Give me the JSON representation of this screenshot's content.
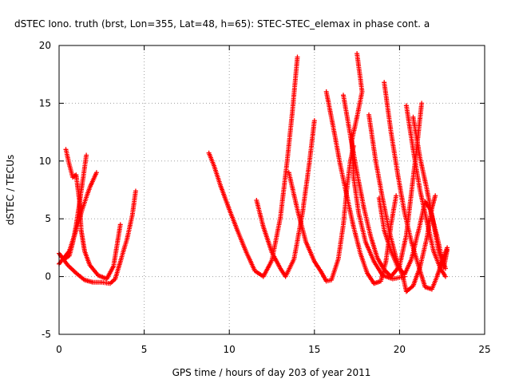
{
  "chart_data": {
    "type": "scatter",
    "title": "dSTEC Iono. truth (brst, Lon=355, Lat=48, h=65): STEC-STEC_elemax in phase cont. a",
    "xlabel": "GPS time / hours of day 203 of year 2011",
    "ylabel": "dSTEC  / TECUs",
    "xlim": [
      0,
      25
    ],
    "ylim": [
      -5,
      20
    ],
    "xticks": [
      "0",
      "5",
      "10",
      "15",
      "20",
      "25"
    ],
    "yticks": [
      "-5",
      "0",
      "5",
      "10",
      "15",
      "20"
    ],
    "grid": true,
    "marker_color": "#ff0000",
    "series": [
      {
        "points": [
          [
            0.0,
            2.0
          ],
          [
            0.5,
            1.0
          ],
          [
            1.0,
            0.3
          ],
          [
            1.5,
            -0.3
          ],
          [
            2.0,
            -0.5
          ],
          [
            2.5,
            -0.5
          ],
          [
            3.0,
            -0.6
          ],
          [
            3.3,
            -0.2
          ],
          [
            3.6,
            1.3
          ],
          [
            4.0,
            3.3
          ],
          [
            4.3,
            5.3
          ],
          [
            4.5,
            7.4
          ]
        ]
      },
      {
        "points": [
          [
            0.1,
            1.8
          ],
          [
            0.3,
            1.5
          ],
          [
            0.6,
            1.8
          ],
          [
            0.8,
            2.9
          ],
          [
            1.0,
            4.4
          ],
          [
            1.2,
            6.4
          ],
          [
            1.4,
            8.4
          ],
          [
            1.6,
            10.5
          ]
        ]
      },
      {
        "points": [
          [
            0.0,
            1.1
          ],
          [
            0.6,
            2.2
          ],
          [
            1.0,
            4.0
          ],
          [
            1.4,
            6.0
          ],
          [
            1.8,
            7.7
          ],
          [
            2.2,
            9.0
          ]
        ]
      },
      {
        "points": [
          [
            0.4,
            11.0
          ],
          [
            0.6,
            9.7
          ],
          [
            0.8,
            8.6
          ],
          [
            1.0,
            8.8
          ],
          [
            1.2,
            6.5
          ],
          [
            1.3,
            4.0
          ],
          [
            1.5,
            2.2
          ],
          [
            1.8,
            1.0
          ],
          [
            2.3,
            0.1
          ],
          [
            2.8,
            -0.2
          ],
          [
            3.2,
            0.9
          ],
          [
            3.6,
            4.5
          ]
        ]
      },
      {
        "points": [
          [
            8.8,
            10.7
          ],
          [
            9.1,
            9.6
          ],
          [
            9.5,
            7.8
          ],
          [
            10.0,
            5.8
          ],
          [
            10.5,
            3.9
          ],
          [
            11.0,
            2.1
          ],
          [
            11.5,
            0.5
          ],
          [
            12.0,
            0.0
          ],
          [
            12.5,
            1.4
          ],
          [
            13.0,
            5.1
          ],
          [
            13.4,
            10.0
          ],
          [
            13.7,
            14.2
          ],
          [
            14.0,
            19.0
          ]
        ]
      },
      {
        "points": [
          [
            11.6,
            6.6
          ],
          [
            12.0,
            4.3
          ],
          [
            12.5,
            2.1
          ],
          [
            13.0,
            0.7
          ],
          [
            13.3,
            0.0
          ],
          [
            13.8,
            1.5
          ],
          [
            14.3,
            5.5
          ],
          [
            14.7,
            9.8
          ],
          [
            15.0,
            13.5
          ]
        ]
      },
      {
        "points": [
          [
            13.5,
            9.0
          ],
          [
            14.0,
            5.8
          ],
          [
            14.5,
            3.0
          ],
          [
            15.0,
            1.3
          ],
          [
            15.4,
            0.4
          ],
          [
            15.7,
            -0.4
          ],
          [
            16.0,
            -0.3
          ],
          [
            16.4,
            1.5
          ],
          [
            16.7,
            4.5
          ],
          [
            16.9,
            7.5
          ],
          [
            17.1,
            9.9
          ],
          [
            17.3,
            11.3
          ]
        ]
      },
      {
        "points": [
          [
            15.7,
            16.0
          ],
          [
            16.1,
            13.0
          ],
          [
            16.5,
            9.8
          ],
          [
            16.9,
            7.0
          ],
          [
            17.3,
            4.3
          ],
          [
            17.7,
            2.0
          ],
          [
            18.1,
            0.3
          ],
          [
            18.5,
            -0.6
          ],
          [
            18.9,
            -0.4
          ],
          [
            19.2,
            1.3
          ],
          [
            19.5,
            4.5
          ],
          [
            19.8,
            7.0
          ]
        ]
      },
      {
        "points": [
          [
            16.7,
            15.7
          ],
          [
            17.1,
            12.3
          ],
          [
            17.5,
            9.0
          ],
          [
            17.9,
            6.0
          ],
          [
            18.3,
            3.5
          ],
          [
            18.7,
            1.6
          ],
          [
            19.1,
            0.6
          ],
          [
            19.5,
            0.0
          ],
          [
            20.0,
            0.9
          ],
          [
            20.4,
            3.6
          ],
          [
            20.7,
            7.3
          ],
          [
            21.0,
            11.0
          ],
          [
            21.3,
            15.0
          ]
        ]
      },
      {
        "points": [
          [
            17.5,
            19.3
          ],
          [
            17.8,
            16.0
          ],
          [
            17.5,
            13.8
          ],
          [
            17.2,
            11.8
          ],
          [
            17.3,
            8.6
          ],
          [
            17.6,
            5.5
          ],
          [
            18.0,
            3.0
          ],
          [
            18.5,
            1.3
          ],
          [
            19.0,
            0.1
          ],
          [
            19.6,
            -0.2
          ],
          [
            20.3,
            0.0
          ]
        ]
      },
      {
        "points": [
          [
            18.2,
            14.0
          ],
          [
            18.6,
            10.0
          ],
          [
            19.0,
            6.8
          ],
          [
            19.4,
            3.9
          ],
          [
            19.8,
            1.6
          ],
          [
            20.2,
            0.0
          ],
          [
            20.4,
            -1.3
          ],
          [
            20.8,
            -0.8
          ],
          [
            21.2,
            0.8
          ],
          [
            21.6,
            3.3
          ],
          [
            21.9,
            5.9
          ],
          [
            22.1,
            7.0
          ]
        ]
      },
      {
        "points": [
          [
            19.1,
            16.8
          ],
          [
            19.5,
            12.5
          ],
          [
            19.9,
            8.8
          ],
          [
            20.3,
            5.5
          ],
          [
            20.7,
            3.0
          ],
          [
            21.1,
            1.0
          ],
          [
            21.5,
            -0.9
          ],
          [
            21.9,
            -1.1
          ],
          [
            22.2,
            0.0
          ],
          [
            22.5,
            1.3
          ],
          [
            22.8,
            2.5
          ]
        ]
      },
      {
        "points": [
          [
            20.4,
            14.8
          ],
          [
            20.8,
            11.0
          ],
          [
            21.2,
            7.5
          ],
          [
            21.6,
            4.8
          ],
          [
            22.0,
            2.2
          ],
          [
            22.4,
            0.7
          ],
          [
            22.7,
            0.0
          ]
        ]
      },
      {
        "points": [
          [
            20.8,
            13.8
          ],
          [
            21.2,
            10.3
          ],
          [
            21.6,
            7.6
          ],
          [
            22.0,
            4.6
          ],
          [
            22.3,
            2.2
          ],
          [
            22.6,
            0.8
          ],
          [
            22.8,
            2.3
          ]
        ]
      },
      {
        "points": [
          [
            18.8,
            6.8
          ],
          [
            19.1,
            4.0
          ],
          [
            19.5,
            2.2
          ],
          [
            19.9,
            0.8
          ],
          [
            20.3,
            0.2
          ],
          [
            20.7,
            1.5
          ],
          [
            21.2,
            4.5
          ],
          [
            21.5,
            6.5
          ],
          [
            21.8,
            5.8
          ],
          [
            22.2,
            3.5
          ],
          [
            22.5,
            1.5
          ],
          [
            22.7,
            0.7
          ]
        ]
      }
    ]
  }
}
